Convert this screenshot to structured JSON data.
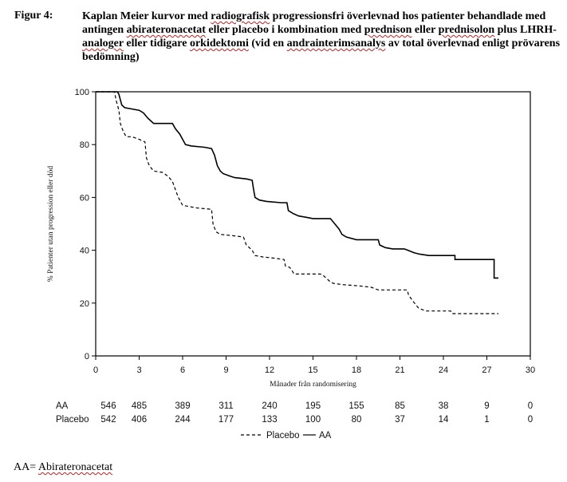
{
  "figure": {
    "label": "Figur 4:",
    "title_segments": [
      {
        "text": "Kaplan Meier kurvor med ",
        "flag": false
      },
      {
        "text": "radiografisk",
        "flag": true
      },
      {
        "text": " progressionsfri överlevnad hos patienter behandlade med antingen ",
        "flag": false
      },
      {
        "text": "abirateronacetat",
        "flag": true
      },
      {
        "text": " eller placebo i kombination med ",
        "flag": false
      },
      {
        "text": "prednison",
        "flag": true
      },
      {
        "text": " eller ",
        "flag": false
      },
      {
        "text": "prednisolon",
        "flag": true
      },
      {
        "text": " plus LHRH-",
        "flag": false
      },
      {
        "text": "analoger",
        "flag": true
      },
      {
        "text": " eller tidigare ",
        "flag": false
      },
      {
        "text": "orkidektomi",
        "flag": true
      },
      {
        "text": " (vid en ",
        "flag": false
      },
      {
        "text": "andrainterimsanalys",
        "flag": true
      },
      {
        "text": " av total överlevnad enligt prövarens bedömning)",
        "flag": false
      }
    ]
  },
  "chart_data": {
    "type": "line",
    "title": "",
    "xlabel": "Månader från randomisering",
    "ylabel": "% Patienter utan progression eller död",
    "xlim": [
      0,
      30
    ],
    "ylim": [
      0,
      100
    ],
    "xticks": [
      0,
      3,
      6,
      9,
      12,
      15,
      18,
      21,
      24,
      27,
      30
    ],
    "yticks": [
      0,
      20,
      40,
      60,
      80,
      100
    ],
    "grid": false,
    "series": [
      {
        "name": "AA",
        "style": "solid",
        "color": "#000000",
        "points": [
          [
            0,
            100
          ],
          [
            1.5,
            100
          ],
          [
            1.6,
            99
          ],
          [
            1.7,
            97
          ],
          [
            1.8,
            95
          ],
          [
            2.0,
            94
          ],
          [
            3.0,
            93
          ],
          [
            3.3,
            92
          ],
          [
            3.6,
            90
          ],
          [
            3.8,
            89
          ],
          [
            4.0,
            88
          ],
          [
            5.3,
            88
          ],
          [
            5.5,
            86
          ],
          [
            5.8,
            84
          ],
          [
            6.0,
            82
          ],
          [
            6.2,
            80
          ],
          [
            6.6,
            79.5
          ],
          [
            7.5,
            79
          ],
          [
            8.0,
            78.5
          ],
          [
            8.2,
            76
          ],
          [
            8.4,
            72
          ],
          [
            8.6,
            70
          ],
          [
            8.8,
            69
          ],
          [
            9.3,
            68
          ],
          [
            9.6,
            67.5
          ],
          [
            10.4,
            67
          ],
          [
            10.8,
            66.5
          ],
          [
            10.9,
            63
          ],
          [
            11.0,
            60
          ],
          [
            11.3,
            59
          ],
          [
            11.8,
            58.5
          ],
          [
            12.8,
            58
          ],
          [
            13.2,
            58
          ],
          [
            13.3,
            55
          ],
          [
            13.6,
            54
          ],
          [
            14.0,
            53
          ],
          [
            14.5,
            52.5
          ],
          [
            15.0,
            52
          ],
          [
            16.2,
            52
          ],
          [
            16.5,
            50
          ],
          [
            16.8,
            48
          ],
          [
            17.0,
            46
          ],
          [
            17.3,
            45
          ],
          [
            18.0,
            44
          ],
          [
            19.5,
            44
          ],
          [
            19.6,
            42
          ],
          [
            20.0,
            41
          ],
          [
            20.5,
            40.5
          ],
          [
            21.3,
            40.5
          ],
          [
            22.0,
            39
          ],
          [
            22.4,
            38.5
          ],
          [
            23.0,
            38
          ],
          [
            24.8,
            38
          ],
          [
            24.8,
            36.5
          ],
          [
            27.5,
            36.5
          ],
          [
            27.5,
            29.5
          ],
          [
            27.8,
            29.5
          ]
        ],
        "risk_table": [
          546,
          485,
          389,
          311,
          240,
          195,
          155,
          85,
          38,
          9,
          0
        ]
      },
      {
        "name": "Placebo",
        "style": "dashed",
        "color": "#000000",
        "points": [
          [
            0,
            100
          ],
          [
            1.3,
            100
          ],
          [
            1.4,
            97
          ],
          [
            1.6,
            93
          ],
          [
            1.7,
            88
          ],
          [
            1.9,
            85
          ],
          [
            2.1,
            83
          ],
          [
            2.5,
            83
          ],
          [
            3.0,
            82
          ],
          [
            3.4,
            81
          ],
          [
            3.5,
            75
          ],
          [
            3.7,
            72
          ],
          [
            4.0,
            70
          ],
          [
            4.6,
            69.5
          ],
          [
            5.0,
            68
          ],
          [
            5.3,
            66
          ],
          [
            5.5,
            63
          ],
          [
            5.7,
            60
          ],
          [
            6.0,
            57
          ],
          [
            6.5,
            56.5
          ],
          [
            7.0,
            56
          ],
          [
            8.0,
            55.5
          ],
          [
            8.1,
            50
          ],
          [
            8.3,
            47
          ],
          [
            8.6,
            46
          ],
          [
            9.5,
            45.5
          ],
          [
            10.2,
            45
          ],
          [
            10.4,
            42
          ],
          [
            10.8,
            40
          ],
          [
            11.0,
            38
          ],
          [
            11.5,
            37.5
          ],
          [
            12.3,
            37
          ],
          [
            13.0,
            36.5
          ],
          [
            13.1,
            34
          ],
          [
            13.4,
            33.5
          ],
          [
            13.7,
            31
          ],
          [
            15.5,
            31
          ],
          [
            15.7,
            30.5
          ],
          [
            16.2,
            28
          ],
          [
            16.4,
            27.5
          ],
          [
            17.0,
            27
          ],
          [
            18.2,
            26.5
          ],
          [
            19.0,
            26
          ],
          [
            19.5,
            25
          ],
          [
            21.5,
            25
          ],
          [
            21.6,
            23
          ],
          [
            22.0,
            20
          ],
          [
            22.3,
            18
          ],
          [
            22.8,
            17
          ],
          [
            24.5,
            17
          ],
          [
            24.6,
            16
          ],
          [
            27.8,
            16
          ]
        ],
        "risk_table": [
          542,
          406,
          244,
          177,
          133,
          100,
          80,
          37,
          14,
          1,
          0
        ]
      }
    ],
    "legend": [
      {
        "name": "Placebo",
        "style": "dashed"
      },
      {
        "name": "AA",
        "style": "solid"
      }
    ]
  },
  "footnote": {
    "prefix": "AA= ",
    "term": "Abirateronacetat"
  }
}
